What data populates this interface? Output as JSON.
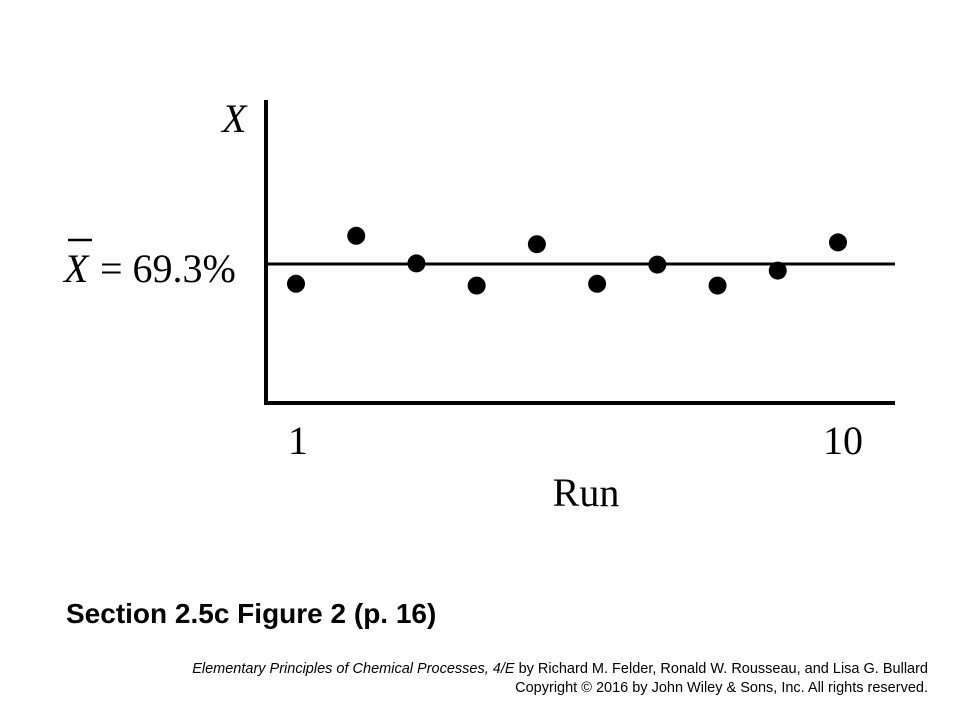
{
  "chart_data": {
    "type": "scatter",
    "y_axis_label": "X",
    "x_axis_label": "Run",
    "x_ticks": [
      "1",
      "10"
    ],
    "xlim": [
      1,
      10
    ],
    "reference_line": {
      "label_symbol": "X",
      "label_value": "= 69.3%",
      "value": 69.3
    },
    "points": [
      {
        "x": 1,
        "y": 66.0
      },
      {
        "x": 2,
        "y": 74.0
      },
      {
        "x": 3,
        "y": 69.4
      },
      {
        "x": 4,
        "y": 65.7
      },
      {
        "x": 5,
        "y": 72.6
      },
      {
        "x": 6,
        "y": 66.0
      },
      {
        "x": 7,
        "y": 69.2
      },
      {
        "x": 8,
        "y": 65.7
      },
      {
        "x": 9,
        "y": 68.2
      },
      {
        "x": 10,
        "y": 72.9
      }
    ],
    "grid": false,
    "legend": "none"
  },
  "caption": "Section 2.5c Figure 2 (p. 16)",
  "credits": {
    "book_title": "Elementary Principles of Chemical Processes, 4/E",
    "authors": "by Richard M. Felder, Ronald W. Rousseau, and Lisa G. Bullard",
    "copyright": "Copyright © 2016 by John Wiley & Sons, Inc.  All rights reserved."
  }
}
